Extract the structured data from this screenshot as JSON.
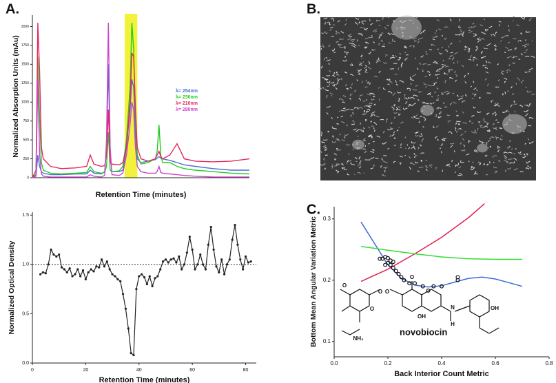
{
  "chart_data": [
    {
      "panel_label": "A.",
      "type": "line",
      "x_label": "Retention Time (minutes)",
      "y_label": "Normalized Absorption Units (mAu)",
      "x": [
        0,
        1,
        1.5,
        2,
        2.5,
        3,
        5,
        8,
        12,
        15,
        16,
        17,
        19,
        20,
        20.5,
        21,
        21.5,
        22,
        24,
        25,
        26,
        27,
        27.5,
        28,
        28.5,
        29,
        30,
        32,
        34,
        34.5,
        35,
        35.5,
        36,
        38,
        40,
        42,
        45,
        50,
        55,
        60
      ],
      "series": [
        {
          "name": "λ= 254nm",
          "color": "#4a6fd4",
          "values": [
            0,
            30,
            300,
            150,
            80,
            60,
            40,
            40,
            50,
            50,
            100,
            60,
            50,
            80,
            400,
            1500,
            300,
            80,
            80,
            100,
            400,
            900,
            1300,
            1200,
            600,
            250,
            200,
            220,
            240,
            260,
            280,
            260,
            250,
            230,
            200,
            170,
            150,
            120,
            100,
            100
          ]
        },
        {
          "name": "λ= 230nm",
          "color": "#22cc22",
          "values": [
            0,
            50,
            1600,
            800,
            200,
            100,
            60,
            50,
            60,
            70,
            150,
            80,
            60,
            70,
            150,
            600,
            100,
            80,
            90,
            150,
            500,
            1200,
            2050,
            1700,
            800,
            300,
            180,
            200,
            250,
            350,
            700,
            300,
            200,
            200,
            150,
            120,
            100,
            80,
            60,
            50
          ]
        },
        {
          "name": "λ= 210nm",
          "color": "#e8265a",
          "values": [
            0,
            100,
            2050,
            1400,
            400,
            250,
            150,
            120,
            130,
            150,
            300,
            180,
            150,
            160,
            300,
            900,
            200,
            180,
            170,
            200,
            400,
            1000,
            1650,
            1600,
            900,
            400,
            250,
            220,
            250,
            300,
            350,
            280,
            250,
            300,
            450,
            250,
            220,
            210,
            220,
            250
          ]
        },
        {
          "name": "λ= 280nm",
          "color": "#cc44cc",
          "values": [
            0,
            20,
            1300,
            300,
            50,
            20,
            10,
            10,
            10,
            10,
            40,
            20,
            10,
            30,
            500,
            2050,
            400,
            40,
            30,
            60,
            300,
            700,
            1000,
            900,
            400,
            150,
            80,
            60,
            60,
            80,
            150,
            70,
            60,
            50,
            40,
            30,
            20,
            10,
            10,
            10
          ]
        }
      ],
      "xlim": [
        0,
        60
      ],
      "ylim": [
        0,
        2150
      ],
      "yticks": [
        0,
        250,
        500,
        750,
        1000,
        1250,
        1500,
        1750,
        2000
      ],
      "highlight": [
        25.5,
        29
      ],
      "highlight_color": "#f2f23a",
      "legend": "right"
    },
    {
      "type": "line",
      "markers": true,
      "color": "#222222",
      "x_label": "Retention Time (minutes)",
      "y_label": "Normalized Optical Density",
      "x": [
        3,
        4,
        5,
        6,
        7,
        8,
        9,
        10,
        11,
        12,
        13,
        14,
        15,
        16,
        17,
        18,
        19,
        20,
        21,
        22,
        23,
        24,
        25,
        26,
        27,
        28,
        29,
        30,
        31,
        32,
        33,
        34,
        35,
        36,
        37,
        38,
        39,
        40,
        41,
        42,
        43,
        44,
        45,
        46,
        47,
        48,
        49,
        50,
        51,
        52,
        53,
        54,
        55,
        56,
        57,
        58,
        59,
        60,
        61,
        62,
        63,
        64,
        65,
        66,
        67,
        68,
        69,
        70,
        71,
        72,
        73,
        74,
        75,
        76,
        77,
        78,
        79,
        80,
        81,
        82
      ],
      "values": [
        0.9,
        0.92,
        0.91,
        1.0,
        1.15,
        1.1,
        1.08,
        1.1,
        0.97,
        0.95,
        0.92,
        0.96,
        0.88,
        0.9,
        0.95,
        0.88,
        0.94,
        0.85,
        0.92,
        0.95,
        0.93,
        0.98,
        0.97,
        1.05,
        0.98,
        1.03,
        0.95,
        0.9,
        0.88,
        0.85,
        0.83,
        0.7,
        0.55,
        0.35,
        0.1,
        0.08,
        0.75,
        0.88,
        0.9,
        0.87,
        0.8,
        0.88,
        0.78,
        0.86,
        0.88,
        0.95,
        1.03,
        1.05,
        1.02,
        1.05,
        1.06,
        1.02,
        1.08,
        0.95,
        1.0,
        1.12,
        1.28,
        1.15,
        0.95,
        1.0,
        1.1,
        1.0,
        0.95,
        1.2,
        1.38,
        1.15,
        0.98,
        0.92,
        1.05,
        0.9,
        1.0,
        1.05,
        1.25,
        1.4,
        1.2,
        1.05,
        0.95,
        1.08,
        1.02,
        1.03
      ],
      "xlim": [
        0,
        84
      ],
      "ylim": [
        0,
        1.53
      ],
      "xticks": [
        0,
        20,
        40,
        60,
        80
      ],
      "yticks": [
        {
          "value": 0,
          "label": "0.0"
        },
        0.5,
        {
          "value": 1,
          "label": "1.0"
        },
        1.5
      ],
      "reference_line": 1
    },
    {
      "panel_label": "B.",
      "type": "image"
    },
    {
      "panel_label": "C.",
      "type": "scatter",
      "x_label": "Back Interior Count Metric",
      "y_label": "Bottom Mean Angular Variation Metric",
      "x": [
        0.17,
        0.18,
        0.19,
        0.2,
        0.2,
        0.21,
        0.22,
        0.21,
        0.22,
        0.19,
        0.24,
        0.25,
        0.28,
        0.3,
        0.33,
        0.35,
        0.37,
        0.4,
        0.46,
        0.46,
        0.23,
        0.26
      ],
      "values": [
        0.235,
        0.235,
        0.238,
        0.236,
        0.228,
        0.225,
        0.22,
        0.232,
        0.23,
        0.225,
        0.21,
        0.205,
        0.195,
        0.195,
        0.19,
        0.183,
        0.19,
        0.19,
        0.2,
        0.205,
        0.215,
        0.2
      ],
      "fits": [
        {
          "color": "#3a6ad4",
          "x": [
            0.1,
            0.15,
            0.2,
            0.25,
            0.3,
            0.35,
            0.4,
            0.45,
            0.5,
            0.55,
            0.6,
            0.65,
            0.7
          ],
          "values": [
            0.295,
            0.26,
            0.225,
            0.203,
            0.192,
            0.189,
            0.191,
            0.197,
            0.203,
            0.205,
            0.202,
            0.196,
            0.19
          ]
        },
        {
          "color": "#e02050",
          "x": [
            0.1,
            0.2,
            0.3,
            0.4,
            0.5,
            0.56
          ],
          "values": [
            0.198,
            0.218,
            0.243,
            0.27,
            0.302,
            0.325
          ]
        },
        {
          "color": "#33dd33",
          "x": [
            0.1,
            0.2,
            0.3,
            0.4,
            0.5,
            0.6,
            0.7
          ],
          "values": [
            0.255,
            0.249,
            0.243,
            0.238,
            0.235,
            0.234,
            0.234
          ]
        }
      ],
      "xlim": [
        0,
        0.8
      ],
      "ylim": [
        0.075,
        0.32
      ],
      "xticks": [
        {
          "value": 0,
          "label": "0.0"
        },
        0.2,
        0.4,
        0.6,
        0.8
      ],
      "yticks": [
        0.1,
        0.2,
        0.3
      ],
      "annotation": "novobiocin",
      "structure_labels": [
        "O",
        "O",
        "O",
        "O",
        "O",
        "OH",
        "H",
        "N",
        "OH",
        "NH₂"
      ]
    }
  ]
}
